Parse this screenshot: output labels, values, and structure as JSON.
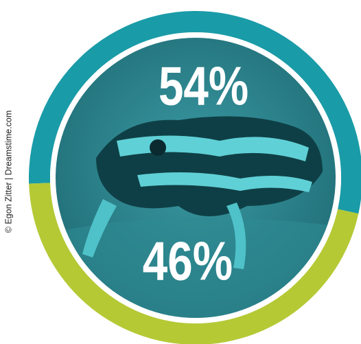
{
  "chart_data": {
    "type": "donut",
    "values": [
      54,
      46
    ],
    "value_labels": [
      "54%",
      "46%"
    ],
    "colors": [
      "#1a9ba8",
      "#b5c935"
    ]
  },
  "credit": "© Egon Zitter | Dreamstime.com"
}
